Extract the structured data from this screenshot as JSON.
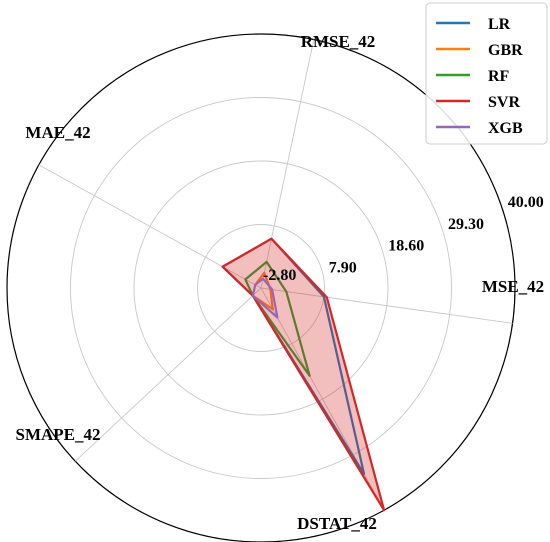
{
  "chart_data": {
    "type": "radar",
    "axes": [
      "MSE_42",
      "RMSE_42",
      "MAE_42",
      "SMAPE_42",
      "DSTAT_42"
    ],
    "radial_range": [
      -2.8,
      40.0
    ],
    "radial_ticks": [
      -2.8,
      7.9,
      18.6,
      29.3,
      40.0
    ],
    "radial_tick_labels": [
      "-2.80",
      "7.90",
      "18.60",
      "29.30",
      "40.00"
    ],
    "grid": true,
    "legend_position": "top-right",
    "series": [
      {
        "name": "LR",
        "color": "#1f77b4",
        "fill": false,
        "values": [
          7.9,
          5.7,
          4.6,
          -0.9,
          33.0
        ]
      },
      {
        "name": "GBR",
        "color": "#ff7f0e",
        "fill": false,
        "values": [
          -1.2,
          -0.2,
          -1.7,
          -0.9,
          1.3
        ]
      },
      {
        "name": "RF",
        "color": "#2ca02c",
        "fill": false,
        "values": [
          1.5,
          1.7,
          0.2,
          -0.9,
          14.1
        ]
      },
      {
        "name": "SVR",
        "color": "#d62728",
        "fill": true,
        "values": [
          8.4,
          5.7,
          4.6,
          -0.9,
          40.0
        ]
      },
      {
        "name": "XGB",
        "color": "#9467bd",
        "fill": false,
        "values": [
          -0.9,
          -1.2,
          -1.7,
          -0.9,
          2.9
        ]
      }
    ]
  }
}
